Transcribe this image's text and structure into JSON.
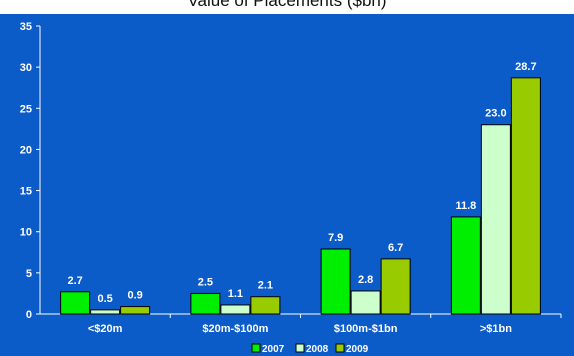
{
  "chart_data": {
    "type": "bar",
    "title": "Value of Placements ($bn)",
    "categories": [
      "<$20m",
      "$20m-$100m",
      "$100m-$1bn",
      ">$1bn"
    ],
    "series": [
      {
        "name": "2007",
        "values": [
          2.7,
          2.5,
          7.9,
          11.8
        ],
        "color": "#00ee00"
      },
      {
        "name": "2008",
        "values": [
          0.5,
          1.1,
          2.8,
          23.0
        ],
        "color": "#ccffcc"
      },
      {
        "name": "2009",
        "values": [
          0.9,
          2.1,
          6.7,
          28.7
        ],
        "color": "#99cc00"
      }
    ],
    "data_labels": [
      [
        "2.7",
        "0.5",
        "0.9"
      ],
      [
        "2.5",
        "1.1",
        "2.1"
      ],
      [
        "7.9",
        "2.8",
        "6.7"
      ],
      [
        "11.8",
        "23.0",
        "28.7"
      ]
    ],
    "yticks": [
      0,
      5,
      10,
      15,
      20,
      25,
      30,
      35
    ],
    "ylim": [
      0,
      35
    ],
    "grid": false,
    "legend_position": "bottom",
    "background_color": "#0b5bc8"
  }
}
